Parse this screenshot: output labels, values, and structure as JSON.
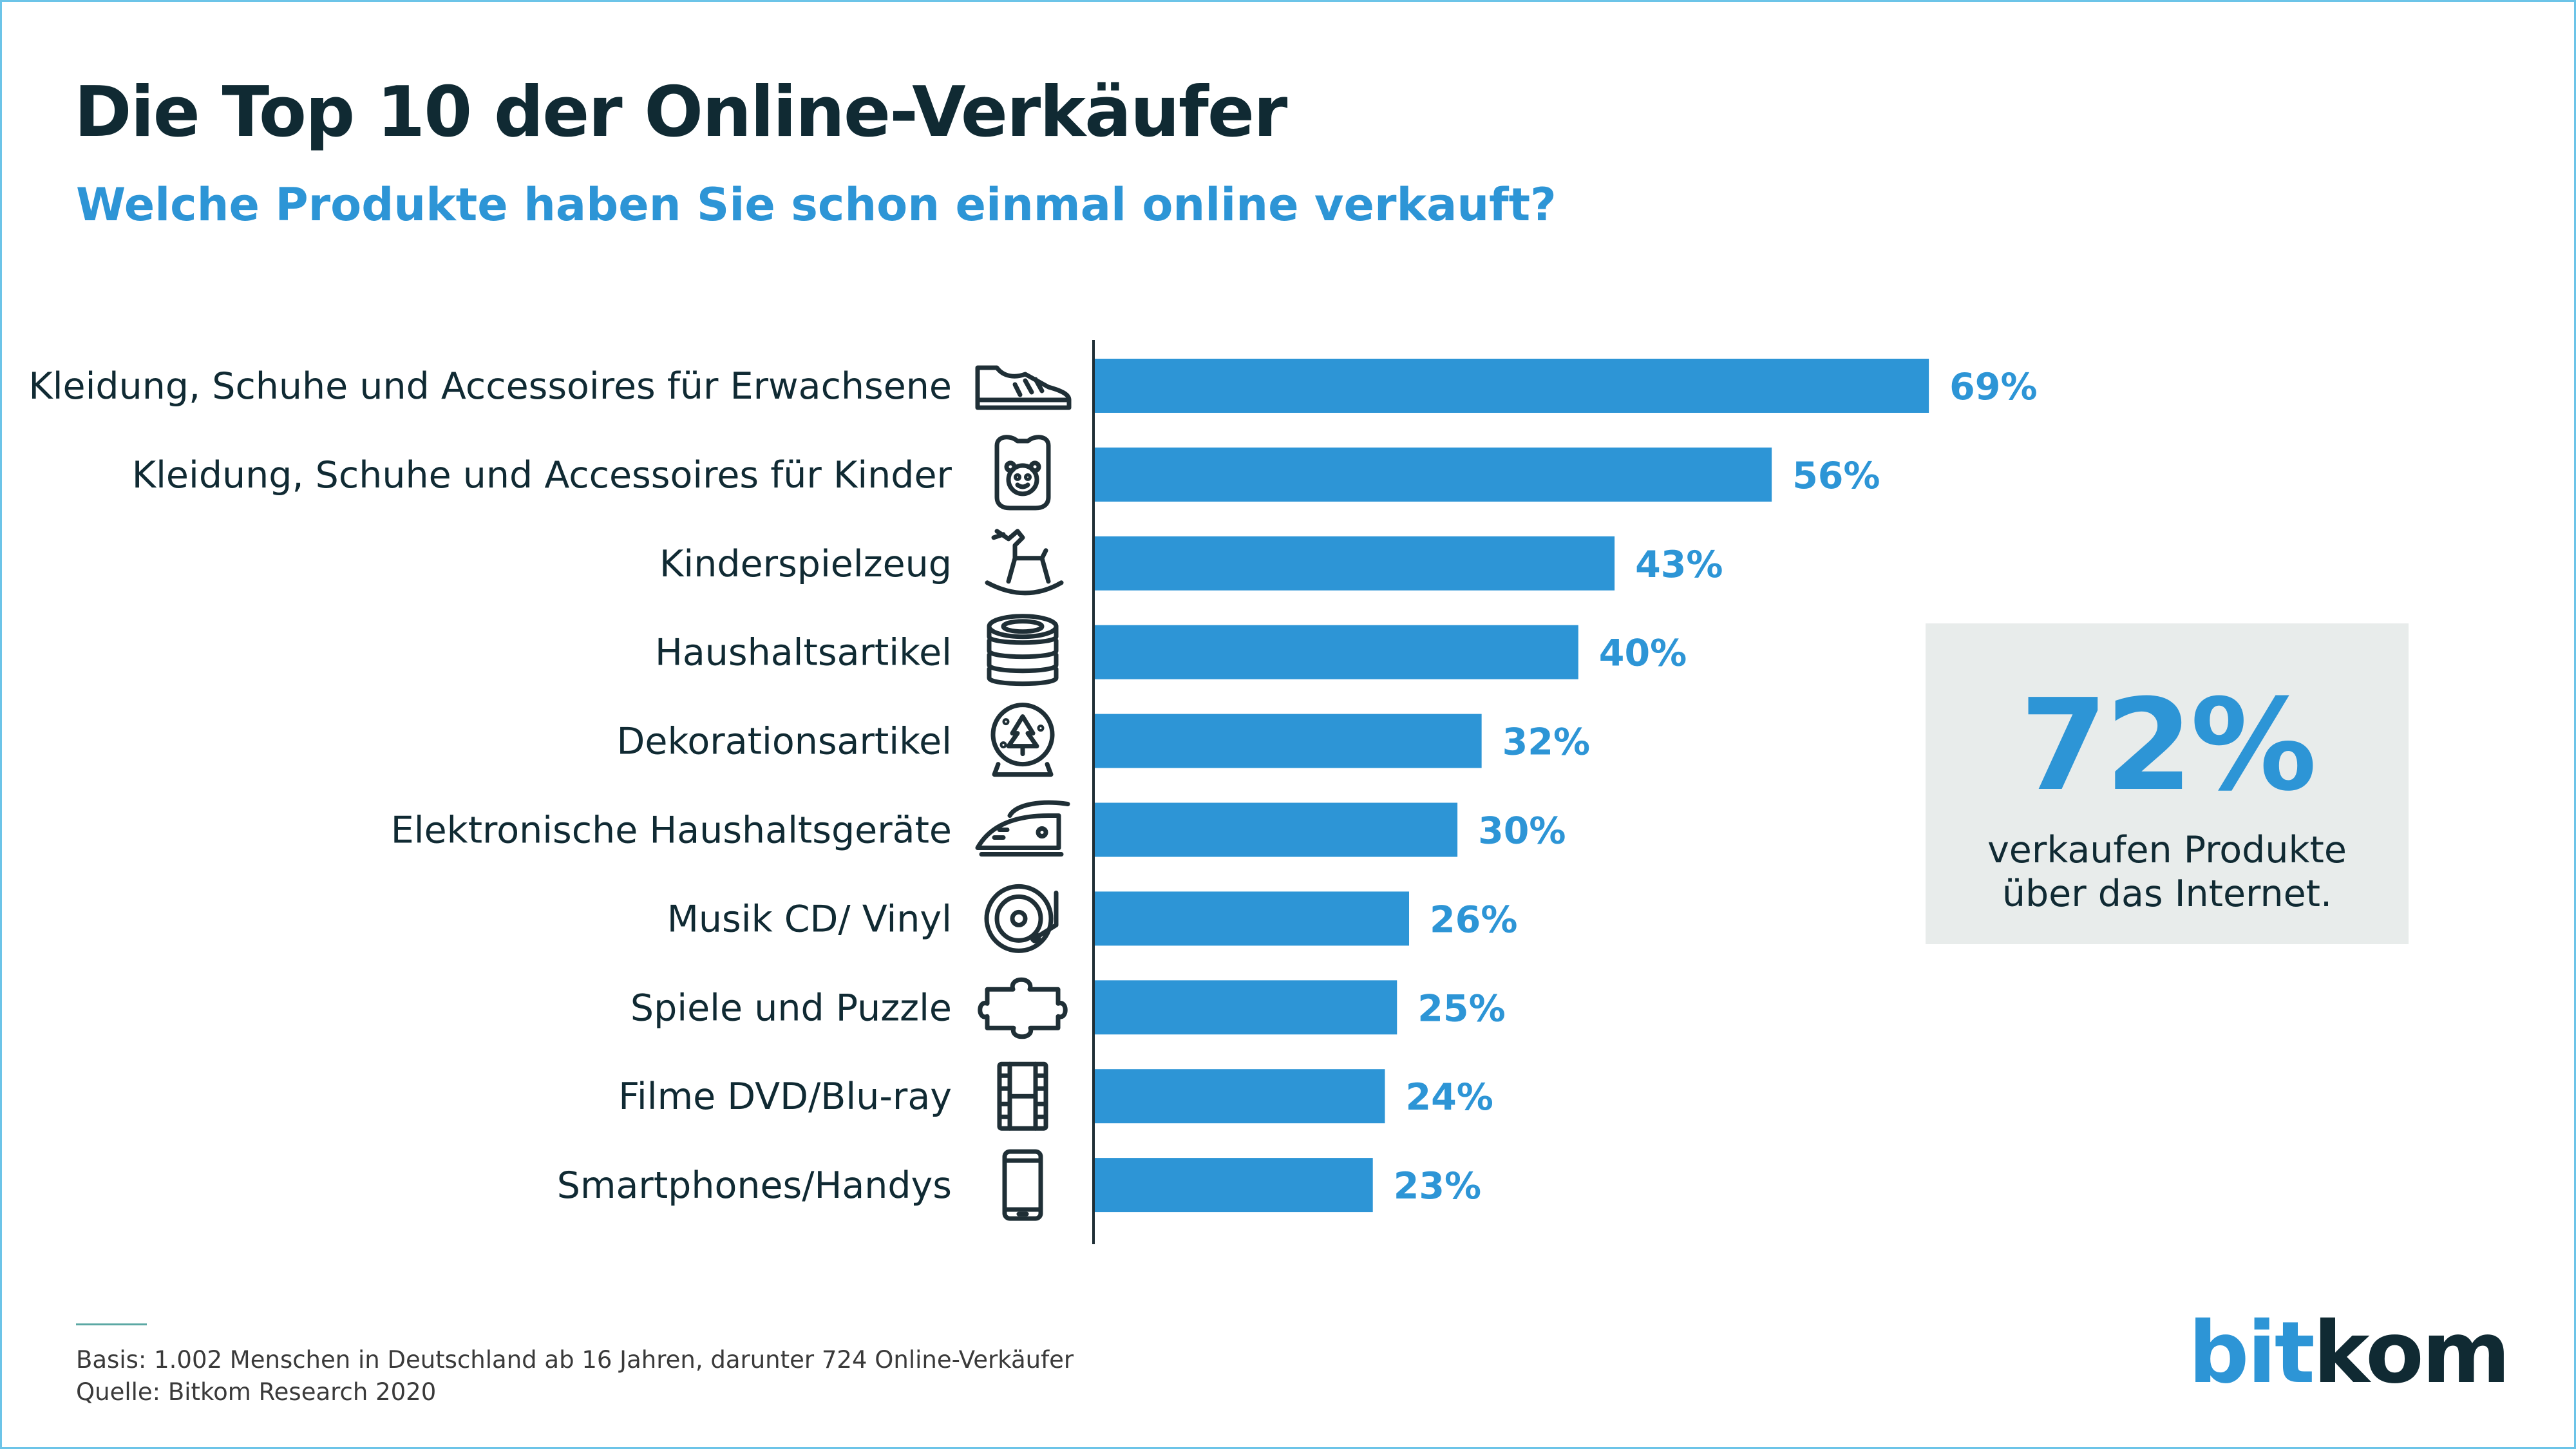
{
  "header": {
    "title": "Die Top 10 der Online-Verkäufer",
    "subtitle": "Welche Produkte haben Sie schon einmal online verkauft?"
  },
  "chart_data": {
    "type": "bar",
    "orientation": "horizontal",
    "categories": [
      "Kleidung, Schuhe und Accessoires für Erwachsene",
      "Kleidung, Schuhe und Accessoires für Kinder",
      "Kinderspielzeug",
      "Haushaltsartikel",
      "Dekorationsartikel",
      "Elektronische Haushaltsgeräte",
      "Musik CD/ Vinyl",
      "Spiele und Puzzle",
      "Filme DVD/Blu-ray",
      "Smartphones/Handys"
    ],
    "values": [
      69,
      56,
      43,
      40,
      32,
      30,
      26,
      25,
      24,
      23
    ],
    "value_labels": [
      "69%",
      "56%",
      "43%",
      "40%",
      "32%",
      "30%",
      "26%",
      "25%",
      "24%",
      "23%"
    ],
    "icons": [
      "sneaker-icon",
      "baby-bib-icon",
      "rocking-horse-icon",
      "plates-stack-icon",
      "snow-globe-icon",
      "iron-icon",
      "vinyl-record-icon",
      "puzzle-piece-icon",
      "film-strip-icon",
      "smartphone-icon"
    ],
    "bar_color": "#2d95d6",
    "grid": false
  },
  "callout": {
    "value": "72%",
    "line1": "verkaufen Produkte",
    "line2": "über das Internet."
  },
  "footer": {
    "basis": "Basis: 1.002 Menschen in Deutschland ab 16 Jahren, darunter 724 Online-Verkäufer",
    "source": "Quelle: Bitkom Research 2020"
  },
  "logo": {
    "part1": "bit",
    "part2": "kom"
  },
  "colors": {
    "accent": "#2d95d6",
    "text": "#102a33",
    "callout_bg": "#e8eceb"
  }
}
